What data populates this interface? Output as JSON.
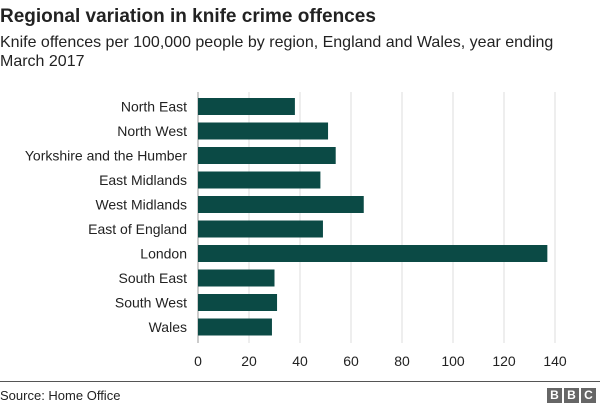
{
  "chart_data": {
    "type": "bar",
    "orientation": "horizontal",
    "title": "Regional variation in knife crime offences",
    "subtitle": "Knife offences per 100,000 people by region, England and Wales, year ending March 2017",
    "categories": [
      "North East",
      "North West",
      "Yorkshire and the Humber",
      "East Midlands",
      "West Midlands",
      "East of England",
      "London",
      "South East",
      "South West",
      "Wales"
    ],
    "values": [
      38,
      51,
      54,
      48,
      65,
      49,
      137,
      30,
      31,
      29
    ],
    "xlim": [
      0,
      140
    ],
    "xticks": [
      "0",
      "20",
      "40",
      "60",
      "80",
      "100",
      "120",
      "140"
    ],
    "grid": true,
    "bar_color": "#0b4a45"
  },
  "footer": {
    "source": "Source: Home Office",
    "logo": [
      "B",
      "B",
      "C"
    ]
  }
}
